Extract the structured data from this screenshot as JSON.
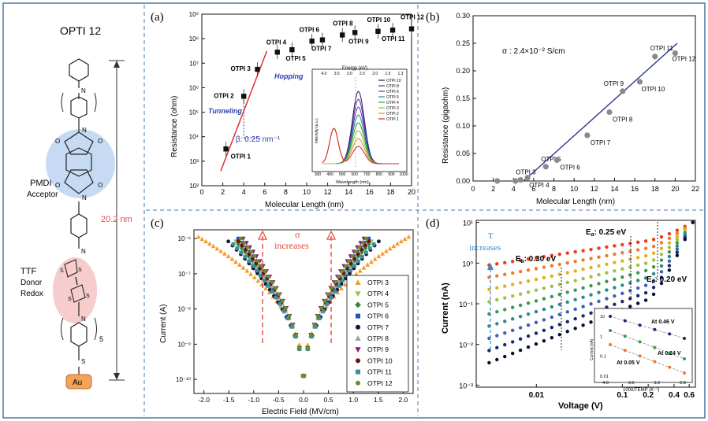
{
  "left_panel": {
    "title": "OPTI 12",
    "acceptor_line1": "PMDI",
    "acceptor_line2": "Acceptor",
    "donor_line1": "TTF",
    "donor_line2": "Donor",
    "donor_line3": "Redox",
    "length_label": "20.2 nm",
    "subscript_n": "5",
    "anchor_label": "Au",
    "sulfur_label": "S",
    "nitrogen_label": "N",
    "oxygen_label": "O",
    "colors": {
      "acceptor": "#a9c8ec",
      "donor": "#f4b9b9",
      "gold": "#f3a35a",
      "dim": "#d9534f"
    }
  },
  "chart_data": [
    {
      "id": "a",
      "panel_label": "(a)",
      "type": "scatter",
      "xlabel": "Molecular Length (nm)",
      "ylabel": "Resistance (ohm)",
      "xlim": [
        0,
        20
      ],
      "xticks": [
        0,
        2,
        4,
        6,
        8,
        10,
        12,
        14,
        16,
        18,
        20
      ],
      "ylog": [
        2,
        9
      ],
      "yticklabels": [
        "10²",
        "10³",
        "10⁴",
        "10⁵",
        "10⁶",
        "10⁷",
        "10⁸",
        "10⁹"
      ],
      "points": [
        {
          "name": "OTPI 1",
          "x": 2.3,
          "ylog": 3.5
        },
        {
          "name": "OTPI 2",
          "x": 4.0,
          "ylog": 5.65
        },
        {
          "name": "OTPI 3",
          "x": 5.3,
          "ylog": 6.75
        },
        {
          "name": "OTPI 4",
          "x": 7.2,
          "ylog": 7.45
        },
        {
          "name": "OTPI 5",
          "x": 8.6,
          "ylog": 7.55
        },
        {
          "name": "OTPI 6",
          "x": 10.5,
          "ylog": 7.9
        },
        {
          "name": "OTPI 7",
          "x": 11.5,
          "ylog": 7.95
        },
        {
          "name": "OTPI 8",
          "x": 13.4,
          "ylog": 8.15
        },
        {
          "name": "OTPI 9",
          "x": 14.6,
          "ylog": 8.25
        },
        {
          "name": "OTPI 10",
          "x": 16.8,
          "ylog": 8.3
        },
        {
          "name": "OTPI 11",
          "x": 18.2,
          "ylog": 8.35
        },
        {
          "name": "OTPI 12",
          "x": 20.0,
          "ylog": 8.4
        }
      ],
      "annotations": {
        "tunneling": "Tunneling",
        "hopping": "Hopping",
        "beta": "β: 0.25 nm⁻¹"
      },
      "inset": {
        "xlabel": "Wavelength (nm)",
        "ylabel": "Intensity (a.u.)",
        "top_label": "Energy (eV)",
        "xticks": [
          "300",
          "400",
          "500",
          "600",
          "700",
          "800",
          "900",
          "1000"
        ],
        "top_ticks": [
          "4.0",
          "3.5",
          "3.0",
          "2.5",
          "2.0",
          "1.5",
          "1.3"
        ],
        "legend": [
          {
            "name": "OTPI 10",
            "color": "#1a1a6e"
          },
          {
            "name": "OTPI 8",
            "color": "#7a1f7a"
          },
          {
            "name": "OTPI 6",
            "color": "#3a4ac0"
          },
          {
            "name": "OTPI 5",
            "color": "#1f8a8a"
          },
          {
            "name": "OTPI 4",
            "color": "#2ea02e"
          },
          {
            "name": "OTPI 3",
            "color": "#8cc43c"
          },
          {
            "name": "OTPI 2",
            "color": "#e08a20"
          },
          {
            "name": "OTPI 1",
            "color": "#d02020"
          }
        ]
      }
    },
    {
      "id": "b",
      "panel_label": "(b)",
      "type": "scatter",
      "xlabel": "Molecular Length (nm)",
      "ylabel": "Resistance (gigaohm)",
      "xlim": [
        0,
        22
      ],
      "xticks": [
        0,
        2,
        4,
        6,
        8,
        10,
        12,
        14,
        16,
        18,
        20,
        22
      ],
      "ylim": [
        0.0,
        0.3
      ],
      "yticks": [
        "0.00",
        "0.05",
        "0.10",
        "0.15",
        "0.20",
        "0.25",
        "0.30"
      ],
      "annotation": "σ : 2.4×10⁻² S/cm",
      "fit": [
        [
          5.0,
          0.0
        ],
        [
          20.2,
          0.25
        ]
      ],
      "points": [
        {
          "name": "",
          "x": 2.4,
          "y": 0.0
        },
        {
          "name": "",
          "x": 4.2,
          "y": 0.0
        },
        {
          "name": "OTPI 3",
          "x": 4.7,
          "y": 0.002
        },
        {
          "name": "OTPI 4",
          "x": 5.4,
          "y": 0.006
        },
        {
          "name": "OTPI 5",
          "x": 7.2,
          "y": 0.026
        },
        {
          "name": "OTPI 6",
          "x": 8.3,
          "y": 0.038
        },
        {
          "name": "OTPI 7",
          "x": 11.3,
          "y": 0.083
        },
        {
          "name": "OTPI 8",
          "x": 13.5,
          "y": 0.125
        },
        {
          "name": "OTPI 9",
          "x": 14.8,
          "y": 0.163
        },
        {
          "name": "OTPI 10",
          "x": 16.5,
          "y": 0.18
        },
        {
          "name": "OTPI 11",
          "x": 18.0,
          "y": 0.226
        },
        {
          "name": "OTPI 12",
          "x": 20.0,
          "y": 0.232
        }
      ]
    },
    {
      "id": "c",
      "panel_label": "(c)",
      "type": "line",
      "xlabel": "Electric Field (MV/cm)",
      "ylabel": "Current (A)",
      "xlim": [
        -2.2,
        2.2
      ],
      "xticks": [
        "-2.0",
        "-1.5",
        "-1.0",
        "-0.5",
        "0.0",
        "0.5",
        "1.0",
        "1.5",
        "2.0"
      ],
      "ylog": [
        -10,
        -6
      ],
      "yticklabels": [
        "10⁻¹⁰",
        "10⁻⁹",
        "10⁻⁸",
        "10⁻⁷",
        "10⁻⁶"
      ],
      "annotation_line1": "σ",
      "annotation_line2": "increases",
      "series": [
        {
          "name": "OTPI 3",
          "color": "#f59a2a",
          "marker": "tri",
          "xmax": 2.1
        },
        {
          "name": "OTPI 4",
          "color": "#96c83c",
          "marker": "tri-down",
          "xmax": 1.35
        },
        {
          "name": "OTPI 5",
          "color": "#2e8b3a",
          "marker": "diamond",
          "xmax": 1.3
        },
        {
          "name": "OTPI 6",
          "color": "#2d4fb5",
          "marker": "square",
          "xmax": 1.3
        },
        {
          "name": "OTPI 7",
          "color": "#14143c",
          "marker": "circle",
          "xmax": 1.5
        },
        {
          "name": "OTPI 8",
          "color": "#9e9e9e",
          "marker": "tri",
          "xmax": 1.25
        },
        {
          "name": "OTPI 9",
          "color": "#8a1b7a",
          "marker": "tri-down",
          "xmax": 1.2
        },
        {
          "name": "OTPI 10",
          "color": "#6b1010",
          "marker": "circle",
          "xmax": 1.3
        },
        {
          "name": "OTPI 11",
          "color": "#3a8fa0",
          "marker": "square",
          "xmax": 1.4
        },
        {
          "name": "OTPI 12",
          "color": "#6b8f20",
          "marker": "circle",
          "xmax": 1.25
        }
      ]
    },
    {
      "id": "d",
      "panel_label": "(d)",
      "type": "scatter",
      "xlabel": "Voltage (V)",
      "ylabel": "Current (nA)",
      "xticks": [
        {
          "label": "0.01",
          "v": 0.01
        },
        {
          "label": "0.1",
          "v": 0.1
        },
        {
          "label": "0.2",
          "v": 0.2
        },
        {
          "label": "0.4",
          "v": 0.4
        },
        {
          "label": "0.6",
          "v": 0.6
        }
      ],
      "xlog": [
        -2.7,
        -0.15
      ],
      "ylog": [
        -3,
        1
      ],
      "yticklabels": [
        "10⁻³",
        "10⁻²",
        "10⁻¹",
        "10⁰",
        "10¹"
      ],
      "annotations": {
        "t_line1": "T",
        "t_line2": "increases",
        "ea1_prefix": "E",
        "ea1_sub": "a",
        "ea1_value": ": 0.30 eV",
        "ea2_prefix": "E",
        "ea2_sub": "a",
        "ea2_value": ": 0.25 eV",
        "ea3_prefix": "E",
        "ea3_sub": "a",
        "ea3_value": ": 0.20 eV"
      },
      "series_colors": [
        "#f03a1a",
        "#f07a2a",
        "#e0b020",
        "#a0c040",
        "#3a9a4a",
        "#2a8a8a",
        "#3a60c0",
        "#1a2a6a",
        "#0a0a30"
      ],
      "inset": {
        "xlabel": "1000/TEMP (K⁻¹)",
        "ylabel": "Current (nA)",
        "xticks": [
          "4.0",
          "3.6",
          "3.2",
          "2.8"
        ],
        "yticks": [
          "10",
          "1",
          "0.1",
          "0.01"
        ],
        "labels": [
          "At 0.46 V",
          "At 0.24 V",
          "At 0.05 V"
        ]
      }
    }
  ]
}
